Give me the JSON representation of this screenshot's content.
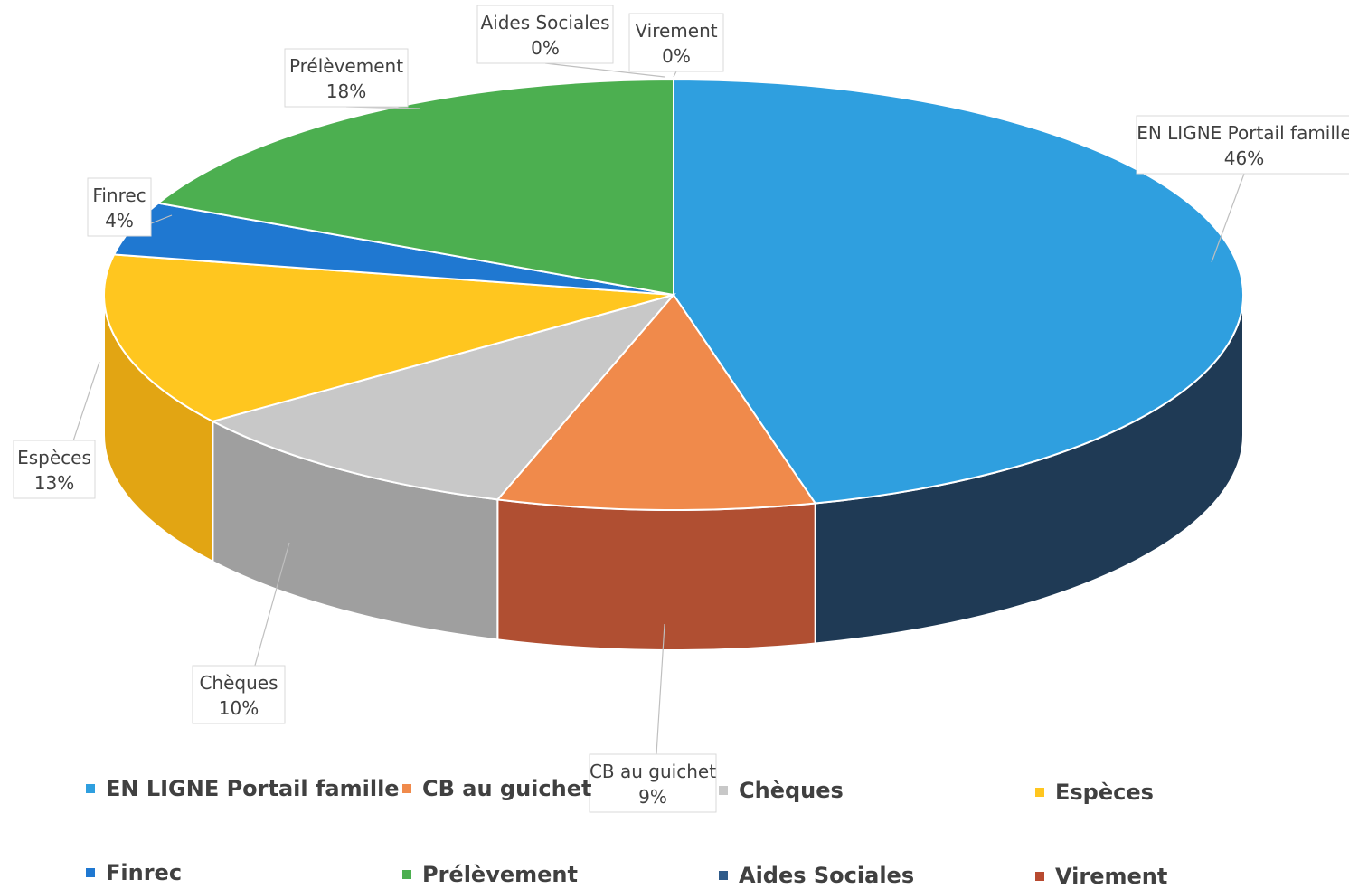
{
  "chart_data": {
    "type": "pie",
    "style": "3d",
    "series": [
      {
        "name": "EN LIGNE Portail famille",
        "value": 46,
        "label": "46%",
        "color": "#2f9fdf",
        "side_color": "#1f3a55"
      },
      {
        "name": "CB au guichet",
        "value": 9,
        "label": "9%",
        "color": "#f08a4b",
        "side_color": "#b04f32"
      },
      {
        "name": "Chèques",
        "value": 10,
        "label": "10%",
        "color": "#c8c8c8",
        "side_color": "#9f9f9f"
      },
      {
        "name": "Espèces",
        "value": 13,
        "label": "13%",
        "color": "#ffc61f",
        "side_color": "#e2a513"
      },
      {
        "name": "Finrec",
        "value": 4,
        "label": "4%",
        "color": "#1f78d1",
        "side_color": "#1a5eaa"
      },
      {
        "name": "Prélèvement",
        "value": 18,
        "label": "18%",
        "color": "#4caf50",
        "side_color": "#3a8a3e"
      },
      {
        "name": "Aides Sociales",
        "value": 0,
        "label": "0%",
        "color": "#2f5b8a",
        "side_color": "#244a70"
      },
      {
        "name": "Virement",
        "value": 0,
        "label": "0%",
        "color": "#b84a30",
        "side_color": "#8f3a25"
      }
    ],
    "legend_position": "bottom"
  }
}
